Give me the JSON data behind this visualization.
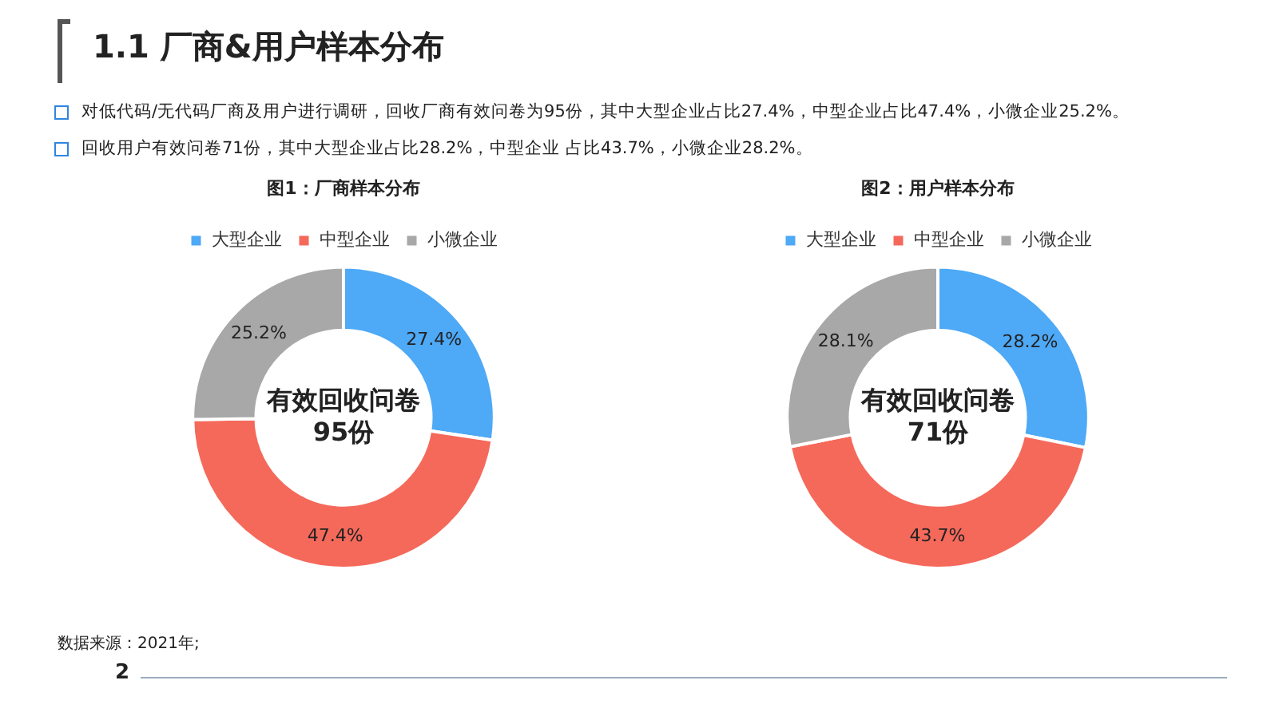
{
  "chart_data": [
    {
      "type": "other",
      "title": "1.1 厂商&用户样本分布",
      "annotations": [
        "对低代码/无代码厂商及用户进行调研，回收厂商有效问卷为95份，其中大型企业占比27.4%，中型企业占比47.4%，小微企业25.2%。",
        "回收用户有效问卷71份，其中大型企业占比28.2%，中型企业 占比43.7%，小微企业28.2%。",
        "数据来源：2021年;",
        "2"
      ]
    },
    {
      "type": "donut",
      "title": "图1：厂商样本分布",
      "categories": [
        "大型企业",
        "中型企业",
        "小微企业"
      ],
      "values": [
        27.4,
        47.4,
        25.2
      ],
      "value_labels": [
        "27.4%",
        "47.4%",
        "25.2%"
      ],
      "colors": [
        "#4ea9f6",
        "#f5695b",
        "#a8a8a8"
      ],
      "legend": "top",
      "annotations": [
        "有效回收问卷",
        "95份"
      ]
    },
    {
      "type": "donut",
      "title": "图2：用户样本分布",
      "categories": [
        "大型企业",
        "中型企业",
        "小微企业"
      ],
      "values": [
        28.2,
        43.7,
        28.1
      ],
      "value_labels": [
        "28.2%",
        "43.7%",
        "28.1%"
      ],
      "colors": [
        "#4ea9f6",
        "#f5695b",
        "#a8a8a8"
      ],
      "legend": "top",
      "annotations": [
        "有效回收问卷",
        "71份"
      ]
    }
  ]
}
